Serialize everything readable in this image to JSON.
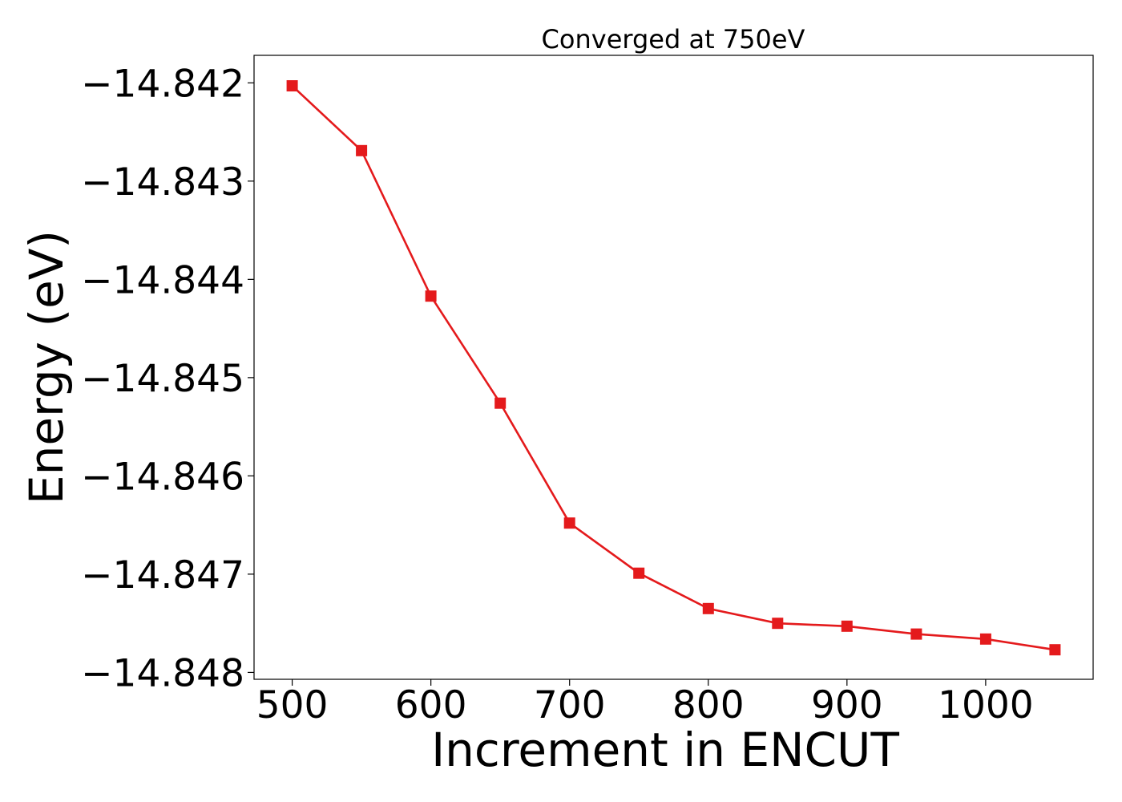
{
  "chart_data": {
    "type": "line",
    "title": "Converged at 750eV",
    "xlabel": "Increment in ENCUT",
    "ylabel": "Energy (eV)",
    "xlim": [
      472.5,
      1077.5
    ],
    "ylim": [
      -14.84807,
      -14.84172
    ],
    "xticks": [
      500,
      600,
      700,
      800,
      900,
      1000
    ],
    "xtick_labels": [
      "500",
      "600",
      "700",
      "800",
      "900",
      "1000"
    ],
    "yticks": [
      -14.842,
      -14.843,
      -14.844,
      -14.845,
      -14.846,
      -14.847,
      -14.848
    ],
    "ytick_labels": [
      "−14.842",
      "−14.843",
      "−14.844",
      "−14.845",
      "−14.846",
      "−14.847",
      "−14.848"
    ],
    "grid": false,
    "marker": "square",
    "color": "#e41a1c",
    "x": [
      500,
      550,
      600,
      650,
      700,
      750,
      800,
      850,
      900,
      950,
      1000,
      1050
    ],
    "y": [
      -14.84203,
      -14.84269,
      -14.84417,
      -14.84526,
      -14.84648,
      -14.84699,
      -14.84735,
      -14.8475,
      -14.84753,
      -14.84761,
      -14.84766,
      -14.84777
    ]
  }
}
